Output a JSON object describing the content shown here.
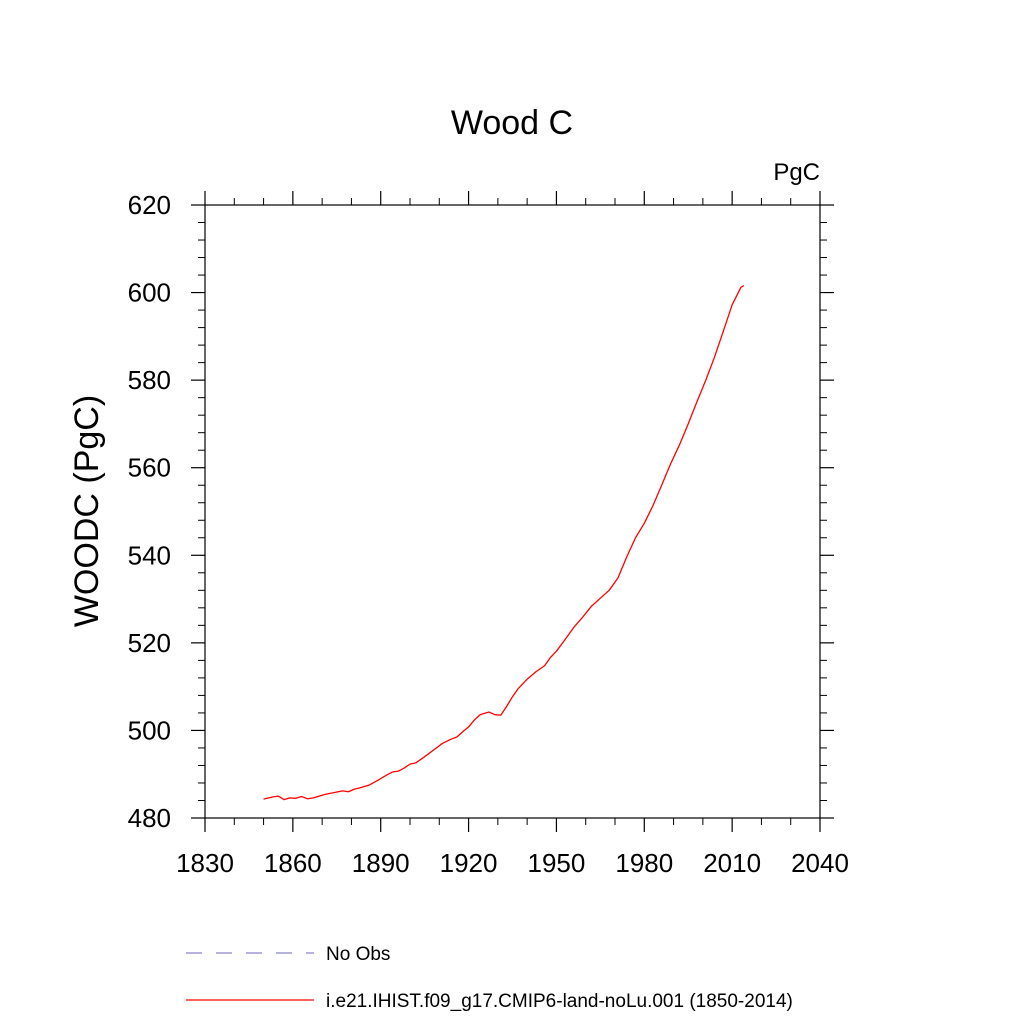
{
  "chart_data": {
    "type": "line",
    "title": "Wood C",
    "unit_label": "PgC",
    "xlabel": "",
    "ylabel": "WOODC  (PgC)",
    "xlim": [
      1830,
      2040
    ],
    "ylim": [
      480,
      620
    ],
    "xticks": [
      1830,
      1860,
      1890,
      1920,
      1950,
      1980,
      2010,
      2040
    ],
    "yticks": [
      480,
      500,
      520,
      540,
      560,
      580,
      600,
      620
    ],
    "grid": false,
    "legend_position": "bottom",
    "legend": [
      {
        "name": "No Obs",
        "color": "#8a83c9",
        "style": "dashed"
      },
      {
        "name": "i.e21.IHIST.f09_g17.CMIP6-land-noLu.001 (1850-2014)",
        "color": "#ff0000",
        "style": "solid"
      }
    ],
    "series": [
      {
        "name": "i.e21.IHIST.f09_g17.CMIP6-land-noLu.001 (1850-2014)",
        "color": "#ff0000",
        "x": [
          1850,
          1853,
          1855,
          1857,
          1859,
          1861,
          1863,
          1865,
          1867,
          1869,
          1871,
          1874,
          1877,
          1879,
          1881,
          1883,
          1886,
          1889,
          1892,
          1894,
          1896,
          1898,
          1900,
          1902,
          1905,
          1908,
          1911,
          1914,
          1916,
          1918,
          1920,
          1922,
          1924,
          1926,
          1927,
          1929,
          1931,
          1933,
          1935,
          1937,
          1940,
          1943,
          1946,
          1948,
          1950,
          1953,
          1956,
          1959,
          1962,
          1965,
          1968,
          1971,
          1974,
          1977,
          1980,
          1983,
          1986,
          1989,
          1992,
          1995,
          1998,
          2001,
          2004,
          2007,
          2010,
          2013,
          2014
        ],
        "y": [
          484.3,
          484.8,
          485.0,
          484.2,
          484.6,
          484.5,
          484.9,
          484.4,
          484.6,
          485.0,
          485.4,
          485.8,
          486.2,
          486.0,
          486.6,
          486.9,
          487.5,
          488.6,
          489.8,
          490.5,
          490.7,
          491.4,
          492.3,
          492.6,
          494.0,
          495.5,
          497.0,
          498.0,
          498.5,
          499.7,
          500.8,
          502.4,
          503.6,
          504.0,
          504.2,
          503.6,
          503.5,
          505.5,
          507.7,
          509.6,
          511.7,
          513.4,
          514.8,
          516.7,
          518.1,
          520.8,
          523.6,
          525.9,
          528.4,
          530.2,
          532.0,
          534.8,
          539.6,
          544.0,
          547.3,
          551.4,
          556.1,
          560.9,
          565.2,
          570.0,
          575.1,
          580.0,
          585.3,
          591.2,
          597.2,
          601.2,
          601.6
        ]
      }
    ]
  }
}
